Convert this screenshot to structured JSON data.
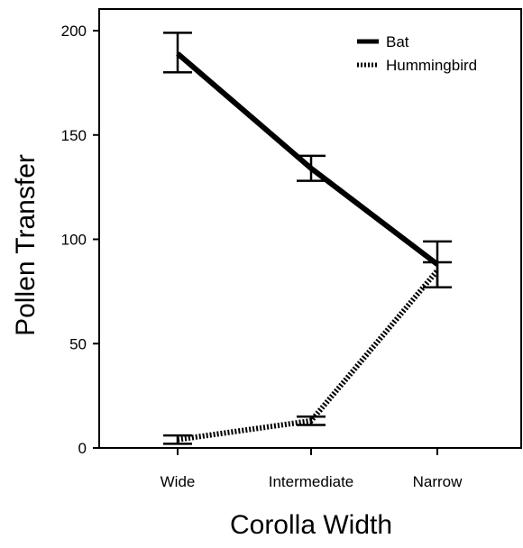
{
  "chart_data": {
    "type": "line",
    "title": "",
    "xlabel": "Corolla Width",
    "ylabel": "Pollen Transfer",
    "categories": [
      "Wide",
      "Intermediate",
      "Narrow"
    ],
    "ylim": [
      0,
      200
    ],
    "yticks": [
      0,
      50,
      100,
      150,
      200
    ],
    "grid": false,
    "legend": "top-right",
    "error_bars": true,
    "series": [
      {
        "name": "Bat",
        "style": "solid",
        "color": "#000000",
        "values": [
          189,
          134,
          88
        ],
        "err_low": [
          180,
          128,
          77
        ],
        "err_high": [
          199,
          140,
          99
        ]
      },
      {
        "name": "Hummingbird",
        "style": "dotted",
        "color": "#000000",
        "values": [
          4,
          13,
          85
        ],
        "err_low": [
          2,
          11,
          77
        ],
        "err_high": [
          6,
          15,
          89
        ]
      }
    ]
  }
}
